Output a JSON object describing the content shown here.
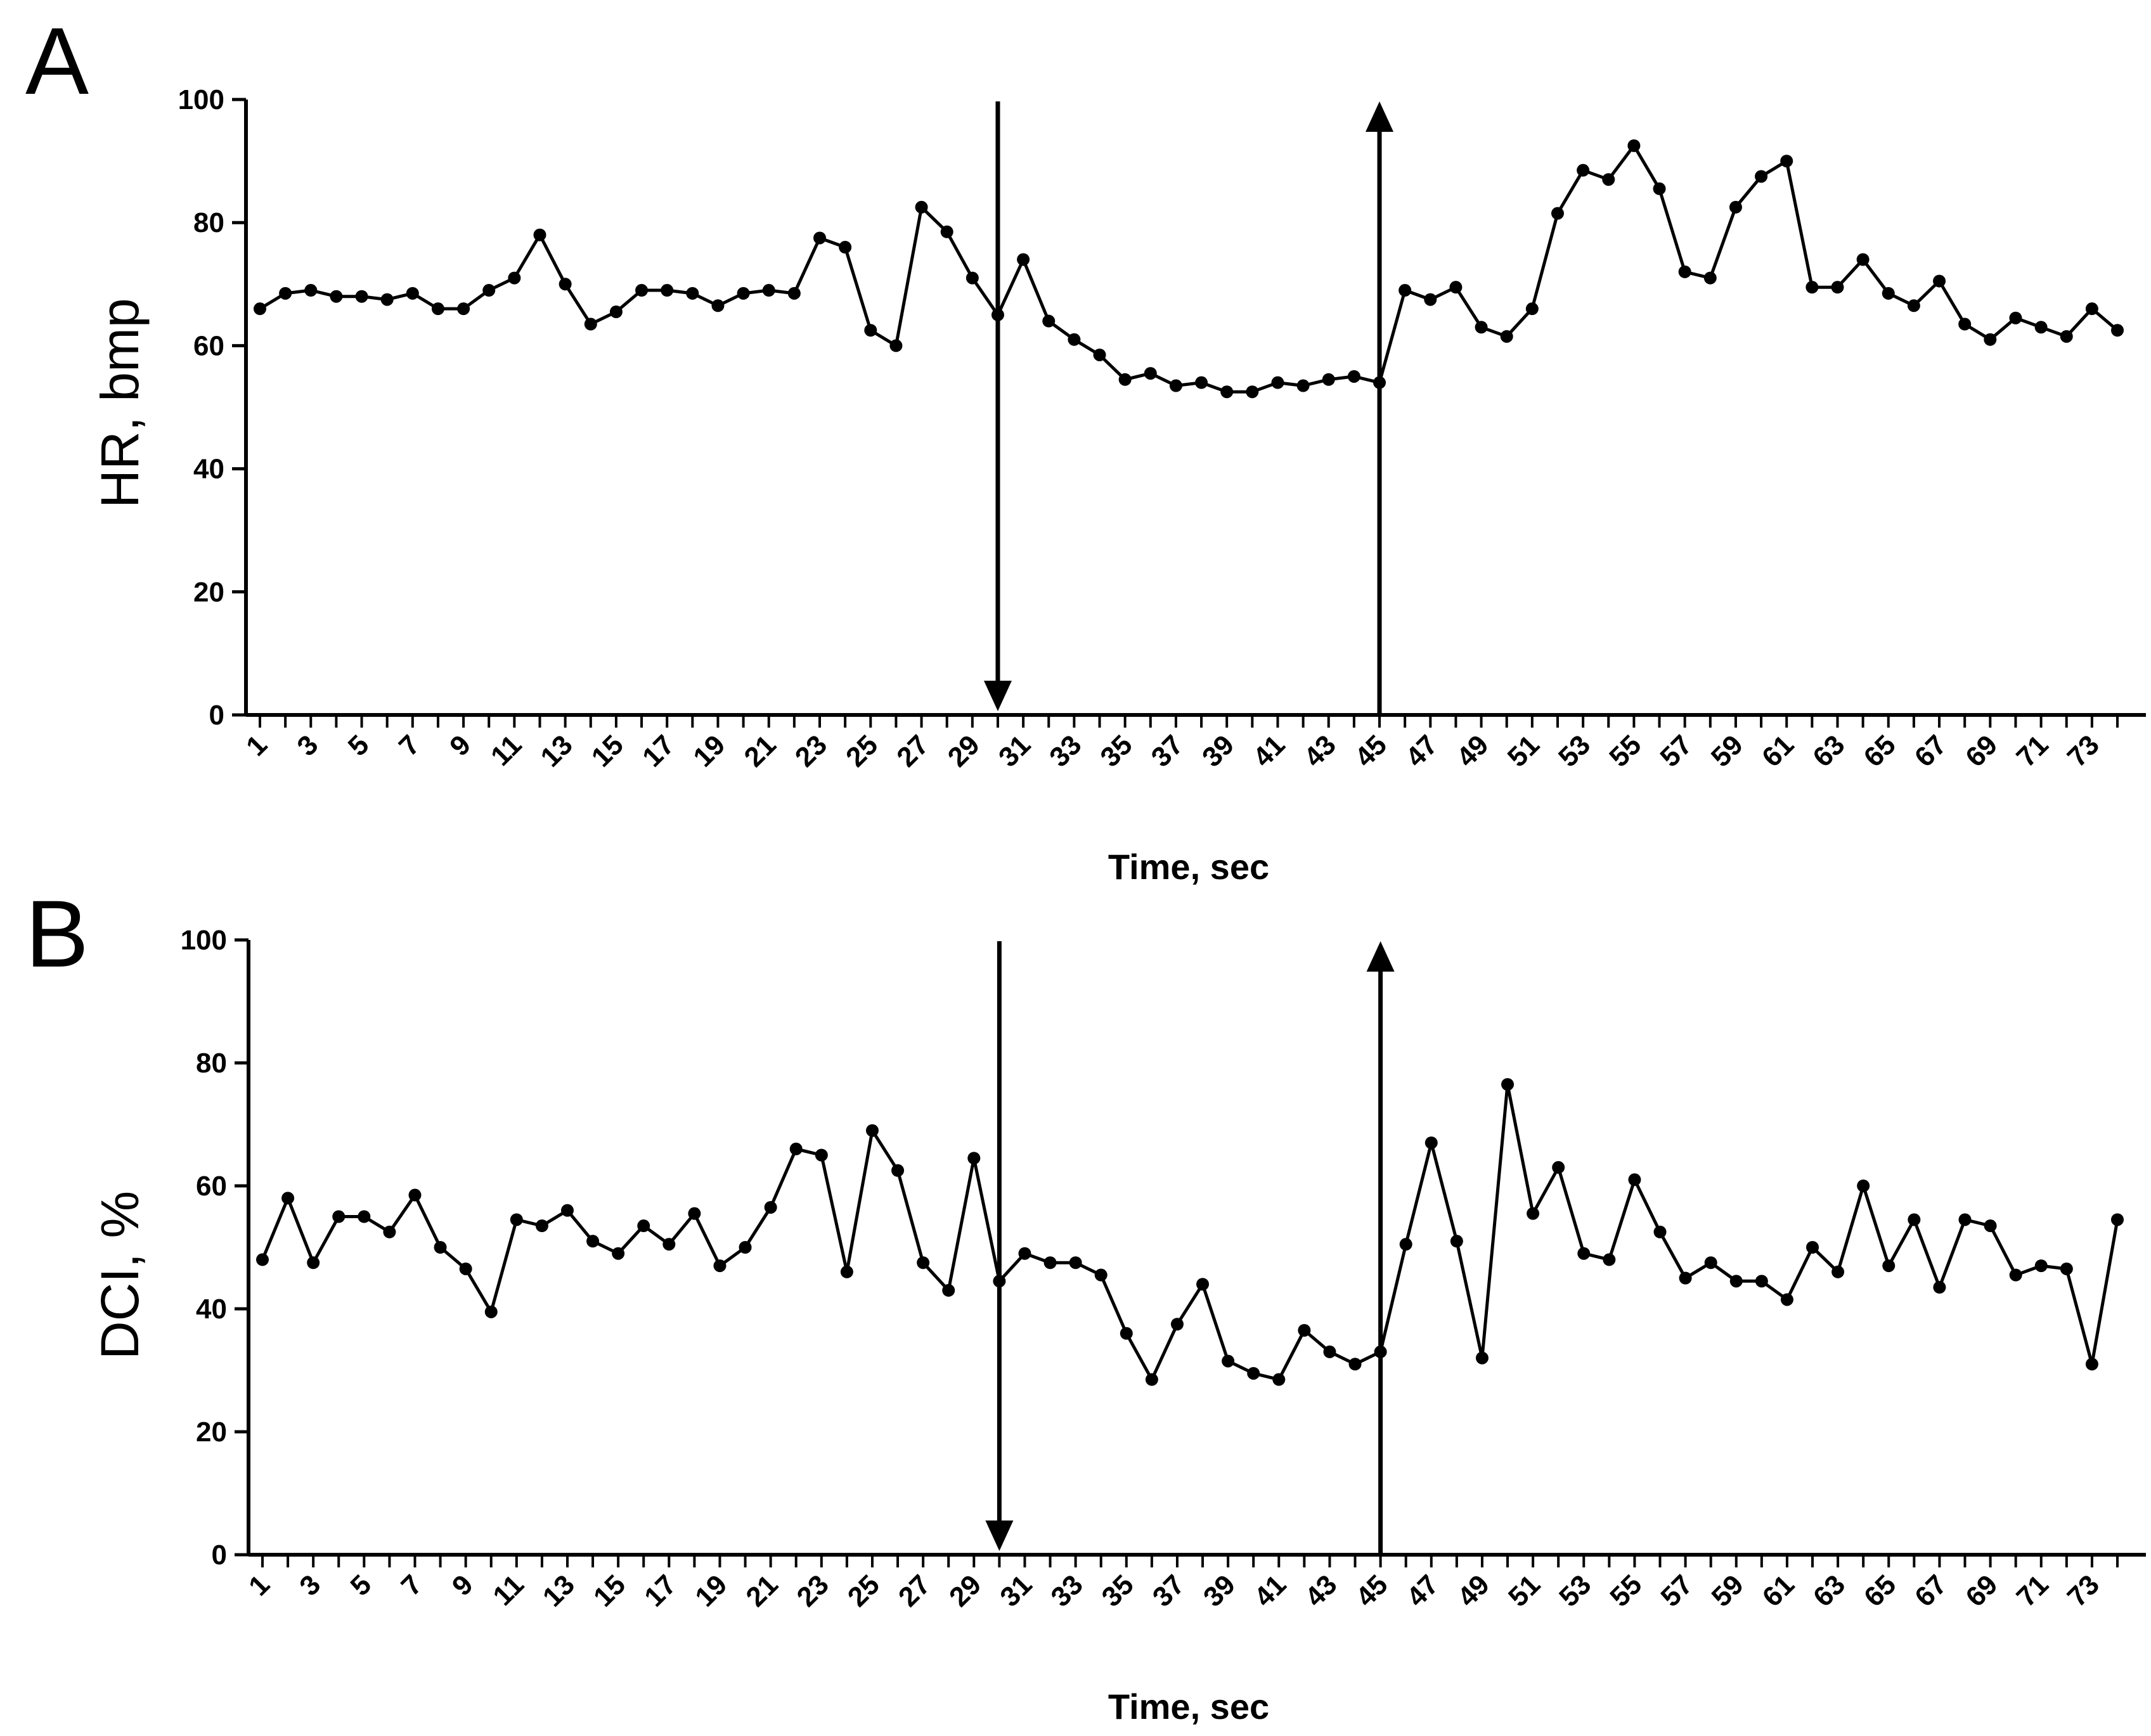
{
  "chart_data": [
    {
      "panel": "A",
      "type": "line",
      "xlabel": "Time, sec",
      "ylabel": "HR, bmp",
      "ylim": [
        0,
        100
      ],
      "yticks": [
        0,
        20,
        40,
        60,
        80,
        100
      ],
      "x": [
        1,
        2,
        3,
        4,
        5,
        6,
        7,
        8,
        9,
        10,
        11,
        12,
        13,
        14,
        15,
        16,
        17,
        18,
        19,
        20,
        21,
        22,
        23,
        24,
        25,
        26,
        27,
        28,
        29,
        30,
        31,
        32,
        33,
        34,
        35,
        36,
        37,
        38,
        39,
        40,
        41,
        42,
        43,
        44,
        45,
        46,
        47,
        48,
        49,
        50,
        51,
        52,
        53,
        54,
        55,
        56,
        57,
        58,
        59,
        60,
        61,
        62,
        63,
        64,
        65,
        66,
        67,
        68,
        69,
        70,
        71,
        72,
        73,
        74
      ],
      "xtick_labels": [
        "1",
        "3",
        "5",
        "7",
        "9",
        "11",
        "13",
        "15",
        "17",
        "19",
        "21",
        "23",
        "25",
        "27",
        "29",
        "31",
        "33",
        "35",
        "37",
        "39",
        "41",
        "43",
        "45",
        "47",
        "49",
        "51",
        "53",
        "55",
        "57",
        "59",
        "61",
        "63",
        "65",
        "67",
        "69",
        "71",
        "73"
      ],
      "values": [
        66,
        68.5,
        69,
        68,
        68,
        67.5,
        68.5,
        66,
        66,
        69,
        71,
        78,
        70,
        63.5,
        65.5,
        69,
        69,
        68.5,
        66.5,
        68.5,
        69,
        68.5,
        77.5,
        76,
        62.5,
        60,
        82.5,
        78.5,
        71,
        65,
        74,
        64,
        61,
        58.5,
        54.5,
        55.5,
        53.5,
        54,
        52.5,
        52.5,
        54,
        53.5,
        54.5,
        55,
        54,
        69,
        67.5,
        69.5,
        63,
        61.5,
        66,
        81.5,
        88.5,
        87,
        92.5,
        85.5,
        72,
        71,
        82.5,
        87.5,
        90,
        69.5,
        69.5,
        74,
        68.5,
        66.5,
        70.5,
        63.5,
        61,
        64.5,
        63,
        61.5,
        66,
        62.5
      ],
      "annotations": [
        {
          "kind": "arrow-down",
          "x": 30
        },
        {
          "kind": "arrow-up",
          "x": 45
        }
      ]
    },
    {
      "panel": "B",
      "type": "line",
      "xlabel": "Time, sec",
      "ylabel": "DCI, %",
      "ylim": [
        0,
        100
      ],
      "yticks": [
        0,
        20,
        40,
        60,
        80,
        100
      ],
      "x": [
        1,
        2,
        3,
        4,
        5,
        6,
        7,
        8,
        9,
        10,
        11,
        12,
        13,
        14,
        15,
        16,
        17,
        18,
        19,
        20,
        21,
        22,
        23,
        24,
        25,
        26,
        27,
        28,
        29,
        30,
        31,
        32,
        33,
        34,
        35,
        36,
        37,
        38,
        39,
        40,
        41,
        42,
        43,
        44,
        45,
        46,
        47,
        48,
        49,
        50,
        51,
        52,
        53,
        54,
        55,
        56,
        57,
        58,
        59,
        60,
        61,
        62,
        63,
        64,
        65,
        66,
        67,
        68,
        69,
        70,
        71,
        72,
        73,
        74
      ],
      "xtick_labels": [
        "1",
        "3",
        "5",
        "7",
        "9",
        "11",
        "13",
        "15",
        "17",
        "19",
        "21",
        "23",
        "25",
        "27",
        "29",
        "31",
        "33",
        "35",
        "37",
        "39",
        "41",
        "43",
        "45",
        "47",
        "49",
        "51",
        "53",
        "55",
        "57",
        "59",
        "61",
        "63",
        "65",
        "67",
        "69",
        "71",
        "73"
      ],
      "values": [
        48,
        58,
        47.5,
        55,
        55,
        52.5,
        58.5,
        50,
        46.5,
        39.5,
        54.5,
        53.5,
        56,
        51,
        49,
        53.5,
        50.5,
        55.5,
        47,
        50,
        56.5,
        66,
        65,
        46,
        69,
        62.5,
        47.5,
        43,
        64.5,
        44.5,
        49,
        47.5,
        47.5,
        45.5,
        36,
        28.5,
        37.5,
        44,
        31.5,
        29.5,
        28.5,
        36.5,
        33,
        31,
        33,
        50.5,
        67,
        51,
        32,
        76.5,
        55.5,
        63,
        49,
        48,
        61,
        52.5,
        45,
        47.5,
        44.5,
        44.5,
        41.5,
        50,
        46,
        60,
        47,
        54.5,
        43.5,
        54.5,
        53.5,
        45.5,
        47,
        46.5,
        31,
        54.5
      ],
      "annotations": [
        {
          "kind": "arrow-down",
          "x": 30
        },
        {
          "kind": "arrow-up",
          "x": 45
        }
      ]
    }
  ]
}
